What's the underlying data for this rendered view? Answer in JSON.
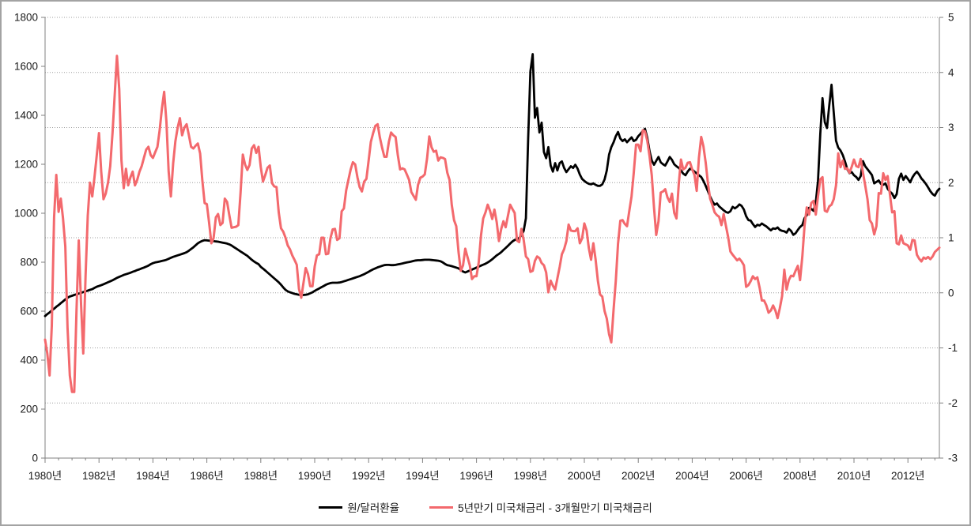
{
  "chart_data": {
    "type": "line",
    "title": "",
    "x_axis": {
      "start_year": 1980,
      "end_year_frac": 2013.1667,
      "major_step_years": 2,
      "minor_tick_half_years": true,
      "labels": [
        "1980년",
        "1982년",
        "1984년",
        "1986년",
        "1988년",
        "1990년",
        "1992년",
        "1994년",
        "1996년",
        "1998년",
        "2000년",
        "2002년",
        "2004년",
        "2006년",
        "2008년",
        "2010년",
        "2012년"
      ]
    },
    "left_axis": {
      "min": 0,
      "max": 1800,
      "step": 200,
      "tick_labels": [
        "0",
        "200",
        "400",
        "600",
        "800",
        "1000",
        "1200",
        "1400",
        "1600",
        "1800"
      ]
    },
    "right_axis": {
      "min": -3,
      "max": 5,
      "step": 1,
      "tick_labels": [
        "-3",
        "-2",
        "-1",
        "0",
        "1",
        "2",
        "3",
        "4",
        "5"
      ],
      "gridlines": true
    },
    "grid": {
      "style": "dotted",
      "color": "#9e9e9e",
      "on_axis": "right"
    },
    "legend_position": "bottom-center",
    "series": [
      {
        "name": "원/달러환율",
        "axis": "left",
        "color": "#000000",
        "line_width": 2.8,
        "start": 1980,
        "monthly_values_by_year": {
          "1980": [
            580,
            588,
            595,
            603,
            610,
            618,
            625,
            633,
            640,
            648,
            655,
            660
          ],
          "1981": [
            663,
            666,
            669,
            672,
            675,
            678,
            681,
            684,
            687,
            690,
            695,
            700
          ],
          "1982": [
            703,
            706,
            710,
            714,
            718,
            722,
            726,
            731,
            736,
            740,
            744,
            748
          ],
          "1983": [
            751,
            754,
            757,
            761,
            764,
            768,
            771,
            775,
            778,
            782,
            786,
            792
          ],
          "1984": [
            796,
            799,
            801,
            803,
            805,
            807,
            810,
            814,
            818,
            822,
            825,
            828
          ],
          "1985": [
            831,
            834,
            837,
            841,
            847,
            854,
            861,
            869,
            877,
            883,
            887,
            890
          ],
          "1986": [
            889,
            888,
            887,
            886,
            885,
            884,
            882,
            880,
            878,
            876,
            873,
            868
          ],
          "1987": [
            862,
            856,
            850,
            844,
            838,
            832,
            826,
            818,
            810,
            803,
            797,
            792
          ],
          "1988": [
            781,
            774,
            766,
            758,
            750,
            742,
            734,
            726,
            718,
            708,
            697,
            687
          ],
          "1989": [
            681,
            677,
            674,
            671,
            669,
            667,
            666,
            666,
            667,
            669,
            673,
            677
          ],
          "1990": [
            683,
            688,
            693,
            698,
            703,
            708,
            712,
            715,
            716,
            716,
            716,
            717
          ],
          "1991": [
            719,
            722,
            725,
            728,
            731,
            734,
            737,
            740,
            743,
            747,
            751,
            756
          ],
          "1992": [
            761,
            766,
            771,
            775,
            779,
            782,
            785,
            788,
            789,
            789,
            788,
            788
          ],
          "1993": [
            789,
            791,
            793,
            795,
            797,
            799,
            801,
            803,
            805,
            807,
            808,
            808
          ],
          "1994": [
            809,
            810,
            810,
            810,
            809,
            808,
            807,
            806,
            804,
            799,
            793,
            788
          ],
          "1995": [
            786,
            784,
            781,
            778,
            775,
            768,
            762,
            758,
            762,
            766,
            770,
            774
          ],
          "1996": [
            778,
            782,
            786,
            790,
            794,
            799,
            805,
            812,
            820,
            828,
            834,
            841
          ],
          "1997": [
            850,
            858,
            867,
            876,
            885,
            891,
            894,
            899,
            910,
            928,
            980,
            1310
          ],
          "1998": [
            1580,
            1650,
            1390,
            1430,
            1330,
            1370,
            1250,
            1225,
            1270,
            1195,
            1170,
            1205
          ],
          "1999": [
            1175,
            1205,
            1212,
            1185,
            1168,
            1180,
            1192,
            1185,
            1198,
            1182,
            1158,
            1140
          ],
          "2000": [
            1132,
            1125,
            1120,
            1118,
            1122,
            1116,
            1112,
            1112,
            1118,
            1138,
            1175,
            1240
          ],
          "2001": [
            1270,
            1290,
            1315,
            1332,
            1305,
            1295,
            1302,
            1290,
            1300,
            1310,
            1295,
            1300
          ],
          "2002": [
            1315,
            1325,
            1335,
            1345,
            1308,
            1255,
            1215,
            1198,
            1214,
            1230,
            1208,
            1200
          ],
          "2003": [
            1195,
            1212,
            1230,
            1218,
            1200,
            1192,
            1185,
            1175,
            1162,
            1155,
            1170,
            1182
          ],
          "2004": [
            1178,
            1170,
            1163,
            1155,
            1148,
            1132,
            1112,
            1090,
            1068,
            1048,
            1035,
            1040
          ],
          "2005": [
            1028,
            1020,
            1012,
            1005,
            1002,
            1008,
            1026,
            1020,
            1026,
            1036,
            1030,
            1015
          ],
          "2006": [
            988,
            972,
            970,
            956,
            944,
            953,
            950,
            958,
            952,
            946,
            938,
            930
          ],
          "2007": [
            938,
            936,
            942,
            932,
            928,
            926,
            921,
            936,
            928,
            912,
            918,
            932
          ],
          "2008": [
            944,
            952,
            980,
            992,
            1022,
            1018,
            1010,
            1044,
            1132,
            1325,
            1470,
            1372
          ],
          "2009": [
            1348,
            1442,
            1525,
            1412,
            1296,
            1268,
            1256,
            1238,
            1212,
            1180,
            1164,
            1168
          ],
          "2010": [
            1155,
            1148,
            1136,
            1152,
            1213,
            1192,
            1180,
            1168,
            1156,
            1122,
            1128,
            1134
          ],
          "2011": [
            1120,
            1116,
            1122,
            1100,
            1088,
            1080,
            1062,
            1078,
            1140,
            1162,
            1136,
            1152
          ],
          "2012": [
            1140,
            1126,
            1146,
            1160,
            1170,
            1158,
            1142,
            1132,
            1120,
            1105,
            1090,
            1078
          ],
          "2013": [
            1072,
            1090,
            1100
          ]
        }
      },
      {
        "name": "5년만기 미국채금리 - 3개월만기 미국채금리",
        "axis": "right",
        "color": "#f3696d",
        "line_width": 3,
        "start": 1980,
        "monthly_values_by_year": {
          "1980": [
            -0.85,
            -1.1,
            -1.5,
            -0.6,
            1.37,
            2.14,
            1.47,
            1.71,
            1.35,
            0.84,
            -0.63,
            -1.5
          ],
          "1981": [
            -1.8,
            -1.8,
            -0.3,
            0.95,
            -0.2,
            -1.1,
            0.3,
            1.4,
            2.0,
            1.75,
            2.1,
            2.5
          ],
          "1982": [
            2.9,
            2.2,
            1.7,
            1.8,
            2.0,
            2.3,
            2.9,
            3.6,
            4.3,
            3.7,
            2.4,
            1.9
          ],
          "1983": [
            2.25,
            1.95,
            2.1,
            2.2,
            1.95,
            2.05,
            2.2,
            2.3,
            2.45,
            2.6,
            2.65,
            2.5
          ],
          "1984": [
            2.45,
            2.55,
            2.65,
            2.95,
            3.35,
            3.65,
            3.1,
            2.2,
            1.75,
            2.35,
            2.75,
            3.0
          ],
          "1985": [
            3.17,
            2.86,
            3.0,
            3.06,
            2.86,
            2.65,
            2.62,
            2.67,
            2.71,
            2.53,
            2.04,
            1.63
          ],
          "1986": [
            1.61,
            1.28,
            0.9,
            0.99,
            1.37,
            1.43,
            1.23,
            1.27,
            1.71,
            1.65,
            1.41,
            1.18
          ],
          "1987": [
            1.19,
            1.2,
            1.23,
            1.81,
            2.51,
            2.33,
            2.23,
            2.32,
            2.62,
            2.68,
            2.54,
            2.65
          ],
          "1988": [
            2.28,
            2.02,
            2.14,
            2.27,
            2.31,
            1.99,
            1.93,
            1.92,
            1.46,
            1.17,
            1.11,
            1.0
          ],
          "1989": [
            0.86,
            0.79,
            0.68,
            0.6,
            0.51,
            0.07,
            -0.09,
            0.18,
            0.45,
            0.34,
            0.12,
            0.12
          ],
          "1990": [
            0.48,
            0.68,
            0.7,
            1.0,
            1.0,
            0.7,
            0.71,
            0.99,
            1.15,
            1.16,
            0.96,
            0.99
          ],
          "1991": [
            1.48,
            1.53,
            1.86,
            2.05,
            2.24,
            2.37,
            2.33,
            2.1,
            1.92,
            1.84,
            2.02,
            2.07
          ],
          "1992": [
            2.4,
            2.74,
            2.9,
            3.03,
            3.06,
            2.82,
            2.63,
            2.47,
            2.47,
            2.74,
            2.91,
            2.86
          ],
          "1993": [
            2.83,
            2.5,
            2.24,
            2.26,
            2.24,
            2.15,
            2.05,
            1.83,
            1.76,
            1.69,
            1.96,
            2.09
          ],
          "1994": [
            2.11,
            2.15,
            2.44,
            2.84,
            2.64,
            2.56,
            2.58,
            2.4,
            2.46,
            2.45,
            2.43,
            2.18
          ],
          "1995": [
            2.05,
            1.6,
            1.32,
            1.21,
            0.74,
            0.4,
            0.5,
            0.8,
            0.65,
            0.5,
            0.25,
            0.3
          ],
          "1996": [
            0.3,
            0.55,
            1.04,
            1.35,
            1.46,
            1.6,
            1.49,
            1.34,
            1.51,
            1.28,
            0.94,
            1.16
          ],
          "1997": [
            1.3,
            1.19,
            1.4,
            1.6,
            1.52,
            1.45,
            0.95,
            0.92,
            1.16,
            0.96,
            0.66,
            0.61
          ],
          "1998": [
            0.38,
            0.4,
            0.58,
            0.66,
            0.63,
            0.54,
            0.5,
            0.37,
            0.01,
            0.22,
            0.13,
            0.06
          ],
          "1999": [
            0.26,
            0.47,
            0.7,
            0.79,
            0.94,
            1.24,
            1.13,
            1.12,
            1.12,
            1.17,
            0.9,
            0.99
          ],
          "2000": [
            1.26,
            1.13,
            0.81,
            0.6,
            0.9,
            0.61,
            0.22,
            -0.03,
            -0.07,
            -0.33,
            -0.47,
            -0.75
          ],
          "2001": [
            -0.9,
            -0.3,
            0.22,
            0.89,
            1.31,
            1.32,
            1.25,
            1.21,
            1.48,
            1.75,
            2.18,
            2.69
          ],
          "2002": [
            2.69,
            2.57,
            2.95,
            2.93,
            2.76,
            2.49,
            2.13,
            1.55,
            1.05,
            1.3,
            1.82,
            1.84
          ],
          "2003": [
            1.88,
            1.73,
            1.65,
            1.8,
            1.45,
            1.35,
            1.97,
            2.42,
            2.24,
            2.27,
            2.36,
            2.37
          ],
          "2004": [
            2.24,
            2.14,
            1.85,
            2.45,
            2.83,
            2.66,
            2.36,
            1.99,
            1.71,
            1.59,
            1.46,
            1.41
          ],
          "2005": [
            1.38,
            1.23,
            1.43,
            1.22,
            1.01,
            0.75,
            0.69,
            0.64,
            0.59,
            0.62,
            0.57,
            0.5
          ],
          "2006": [
            0.11,
            0.14,
            0.21,
            0.3,
            0.25,
            0.28,
            0.09,
            -0.14,
            -0.14,
            -0.23,
            -0.36,
            -0.32
          ],
          "2007": [
            -0.23,
            -0.32,
            -0.46,
            -0.28,
            -0.06,
            0.42,
            0.06,
            0.23,
            0.31,
            0.3,
            0.4,
            0.49
          ],
          "2008": [
            0.23,
            0.66,
            1.22,
            1.55,
            1.42,
            1.63,
            1.67,
            1.42,
            1.75,
            2.06,
            2.1,
            1.49
          ],
          "2009": [
            1.47,
            1.57,
            1.6,
            1.7,
            1.95,
            2.53,
            2.28,
            2.4,
            2.25,
            2.26,
            2.18,
            2.29
          ],
          "2010": [
            2.42,
            2.3,
            2.28,
            2.43,
            2.18,
            1.95,
            1.7,
            1.32,
            1.26,
            1.06,
            1.21,
            1.81
          ],
          "2011": [
            1.8,
            2.17,
            2.05,
            2.12,
            1.78,
            1.46,
            1.48,
            0.9,
            0.88,
            1.04,
            0.9,
            0.88
          ],
          "2012": [
            0.86,
            0.78,
            0.96,
            0.95,
            0.69,
            0.62,
            0.57,
            0.64,
            0.62,
            0.65,
            0.61,
            0.66
          ],
          "2013": [
            0.74,
            0.78,
            0.82
          ]
        }
      }
    ],
    "legend": [
      {
        "label": "원/달러환율",
        "color": "#000000"
      },
      {
        "label": "5년만기 미국채금리 - 3개월만기 미국채금리",
        "color": "#f3696d"
      }
    ],
    "style": {
      "axis_color": "#808080",
      "grid_color": "#9e9e9e",
      "text_color": "#1a1a1a",
      "background": "#ffffff"
    }
  }
}
